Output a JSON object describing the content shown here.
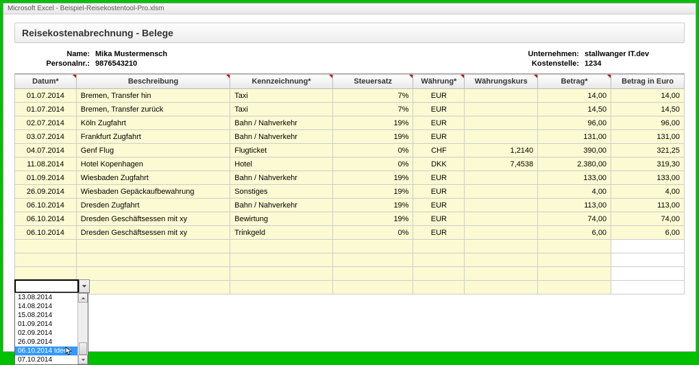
{
  "window": {
    "title": "Microsoft Excel - Beispiel-Reisekostentool-Pro.xlsm"
  },
  "section": {
    "title": "Reisekostenabrechnung - Belege"
  },
  "info": {
    "name_label": "Name:",
    "name": "Mika Mustermensch",
    "persnr_label": "Personalnr.:",
    "persnr": "9876543210",
    "company_label": "Unternehmen:",
    "company": "stallwanger IT.dev",
    "cc_label": "Kostenstelle:",
    "cc": "1234"
  },
  "headers": {
    "date": "Datum*",
    "desc": "Beschreibung",
    "kenn": "Kennzeichnung*",
    "tax": "Steuersatz",
    "curr": "Währung*",
    "rate": "Währungskurs",
    "amt": "Betrag*",
    "eur": "Betrag in Euro"
  },
  "rows": [
    {
      "date": "01.07.2014",
      "desc": "Bremen, Transfer hin",
      "kenn": "Taxi",
      "tax": "7%",
      "curr": "EUR",
      "rate": "",
      "amt": "14,00",
      "eur": "14,00"
    },
    {
      "date": "01.07.2014",
      "desc": "Bremen, Transfer zurück",
      "kenn": "Taxi",
      "tax": "7%",
      "curr": "EUR",
      "rate": "",
      "amt": "14,50",
      "eur": "14,50"
    },
    {
      "date": "02.07.2014",
      "desc": "Köln Zugfahrt",
      "kenn": "Bahn / Nahverkehr",
      "tax": "19%",
      "curr": "EUR",
      "rate": "",
      "amt": "96,00",
      "eur": "96,00"
    },
    {
      "date": "03.07.2014",
      "desc": "Frankfurt Zugfahrt",
      "kenn": "Bahn / Nahverkehr",
      "tax": "19%",
      "curr": "EUR",
      "rate": "",
      "amt": "131,00",
      "eur": "131,00"
    },
    {
      "date": "04.07.2014",
      "desc": "Genf Flug",
      "kenn": "Flugticket",
      "tax": "0%",
      "curr": "CHF",
      "rate": "1,2140",
      "amt": "390,00",
      "eur": "321,25"
    },
    {
      "date": "11.08.2014",
      "desc": "Hotel Kopenhagen",
      "kenn": "Hotel",
      "tax": "0%",
      "curr": "DKK",
      "rate": "7,4538",
      "amt": "2.380,00",
      "eur": "319,30"
    },
    {
      "date": "01.09.2014",
      "desc": "Wiesbaden Zugfahrt",
      "kenn": "Bahn / Nahverkehr",
      "tax": "19%",
      "curr": "EUR",
      "rate": "",
      "amt": "133,00",
      "eur": "133,00"
    },
    {
      "date": "26.09.2014",
      "desc": "Wiesbaden Gepäckaufbewahrung",
      "kenn": "Sonstiges",
      "tax": "19%",
      "curr": "EUR",
      "rate": "",
      "amt": "4,00",
      "eur": "4,00"
    },
    {
      "date": "06.10.2014",
      "desc": "Dresden Zugfahrt",
      "kenn": "Bahn / Nahverkehr",
      "tax": "19%",
      "curr": "EUR",
      "rate": "",
      "amt": "113,00",
      "eur": "113,00"
    },
    {
      "date": "06.10.2014",
      "desc": "Dresden Geschäftsessen mit xy",
      "kenn": "Bewirtung",
      "tax": "19%",
      "curr": "EUR",
      "rate": "",
      "amt": "74,00",
      "eur": "74,00"
    },
    {
      "date": "06.10.2014",
      "desc": "Dresden Geschäftsessen mit xy",
      "kenn": "Trinkgeld",
      "tax": "0%",
      "curr": "EUR",
      "rate": "",
      "amt": "6,00",
      "eur": "6,00"
    }
  ],
  "dropdown": {
    "items": [
      "13.08.2014",
      "14.08.2014",
      "15.08.2014",
      "01.09.2014",
      "02.09.2014",
      "26.09.2014",
      "06.10.2014",
      "07.10.2014"
    ],
    "selected_index": 6,
    "selected_extra": " Ideen"
  }
}
